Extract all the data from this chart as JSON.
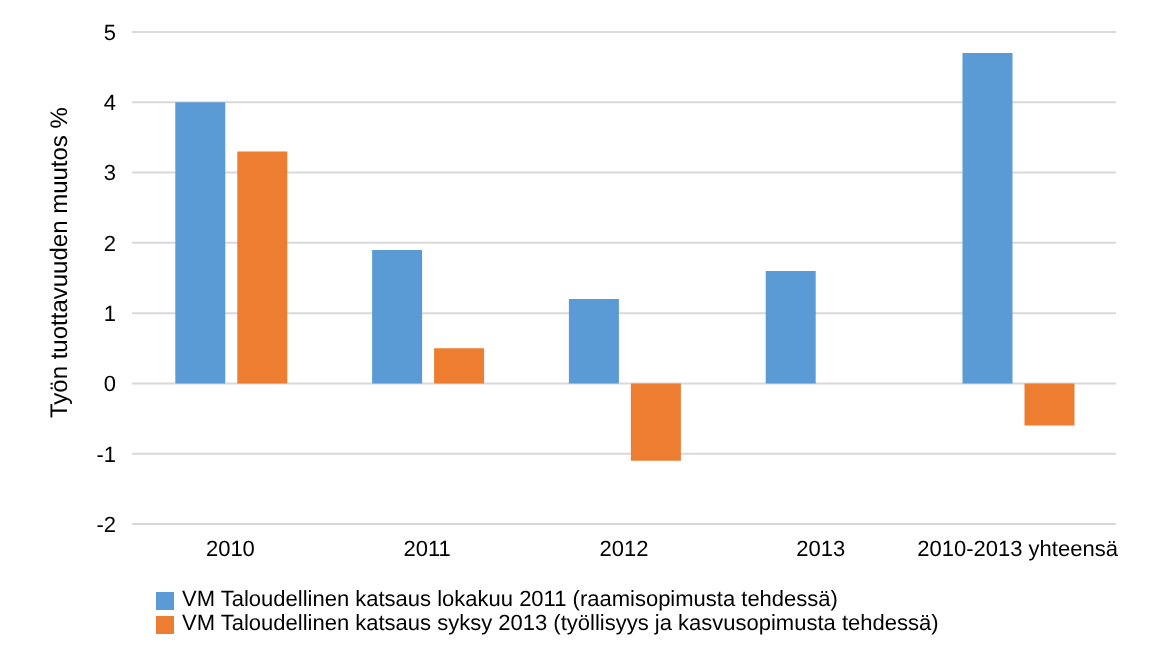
{
  "chart_data": {
    "type": "bar",
    "ylabel": "Työn tuottavuuden muutos %",
    "categories": [
      "2010",
      "2011",
      "2012",
      "2013",
      "2010-2013 yhteensä"
    ],
    "series": [
      {
        "name": "VM Taloudellinen katsaus lokakuu 2011 (raamisopimusta tehdessä)",
        "color": "#5b9bd5",
        "values": [
          4.0,
          1.9,
          1.2,
          1.6,
          4.7
        ]
      },
      {
        "name": "VM Taloudellinen katsaus syksy 2013 (työllisyys ja kasvusopimusta tehdessä)",
        "color": "#ed7d31",
        "values": [
          3.3,
          0.5,
          -1.1,
          null,
          -0.6
        ]
      }
    ],
    "ylim": [
      -2,
      5
    ],
    "yticks": [
      -2,
      -1,
      0,
      1,
      2,
      3,
      4,
      5
    ],
    "grid": "y",
    "legend": "bottom"
  }
}
